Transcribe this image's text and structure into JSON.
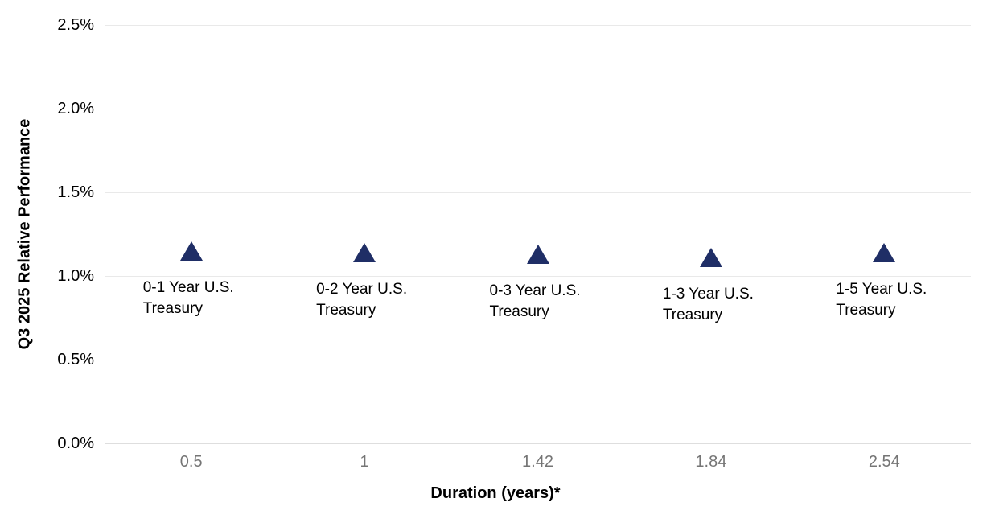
{
  "chart_data": {
    "type": "scatter",
    "title": "",
    "xlabel": "Duration (years)*",
    "ylabel": "Q3 2025 Relative Performance",
    "x_axis_type": "categorical",
    "grid": "horizontal",
    "legend_position": "none",
    "ylim": [
      0,
      2.5
    ],
    "y_unit": "percent",
    "y_ticks": [
      {
        "value": 0.0,
        "label": "0.0%"
      },
      {
        "value": 0.5,
        "label": "0.5%"
      },
      {
        "value": 1.0,
        "label": "1.0%"
      },
      {
        "value": 1.5,
        "label": "1.5%"
      },
      {
        "value": 2.0,
        "label": "2.0%"
      },
      {
        "value": 2.5,
        "label": "2.5%"
      }
    ],
    "marker": {
      "shape": "triangle-up",
      "color": "#1f2e66"
    },
    "points": [
      {
        "x_tick_label": "0.5",
        "label": "0-1 Year U.S. Treasury",
        "value_pct": 1.15
      },
      {
        "x_tick_label": "1",
        "label": "0-2 Year U.S. Treasury",
        "value_pct": 1.14
      },
      {
        "x_tick_label": "1.42",
        "label": "0-3 Year U.S. Treasury",
        "value_pct": 1.13
      },
      {
        "x_tick_label": "1.84",
        "label": "1-3 Year U.S. Treasury",
        "value_pct": 1.11
      },
      {
        "x_tick_label": "2.54",
        "label": "1-5 Year U.S. Treasury",
        "value_pct": 1.14
      }
    ]
  },
  "colors": {
    "background": "#ffffff",
    "gridline": "#e9e9e9",
    "axis_line": "#dedede",
    "x_tick_text": "#757575",
    "text": "#000000",
    "marker": "#1f2e66"
  }
}
